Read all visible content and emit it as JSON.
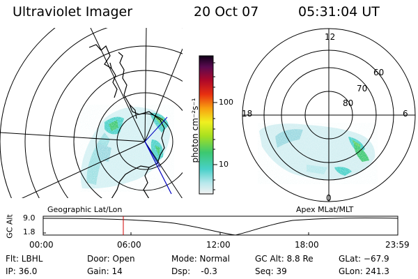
{
  "header": {
    "title": "Ultraviolet Imager",
    "date": "20 Oct 07",
    "time": "05:31:04 UT"
  },
  "colorbar": {
    "unit_label": "photon cm⁻²s⁻¹",
    "ticks": [
      "100",
      "10"
    ]
  },
  "left_panel": {
    "label": "Geographic Lat/Lon"
  },
  "right_panel": {
    "label": "Apex MLat/MLT",
    "mlt_labels": [
      "12",
      "18",
      "6",
      "0"
    ],
    "mlat_labels": [
      "60",
      "70",
      "80"
    ]
  },
  "altitude_plot": {
    "ylabel": "GC Alt",
    "yticks": [
      "9.0",
      "1.8"
    ],
    "xticks": [
      "00:00",
      "06:00",
      "12:00",
      "18:00",
      "23:59"
    ],
    "marker_time": "05:31"
  },
  "footer": {
    "flt": "Flt: LBHL",
    "ip": "IP: 36.0",
    "door": "Door: Open",
    "gain": "Gain: 14",
    "mode": "Mode: Normal",
    "dsp": "Dsp:    -0.3",
    "gc_alt": "GC Alt: 8.8 Re",
    "seq": "Seq: 39",
    "glat": "GLat: −67.9",
    "glon": "GLon: 241.3"
  }
}
